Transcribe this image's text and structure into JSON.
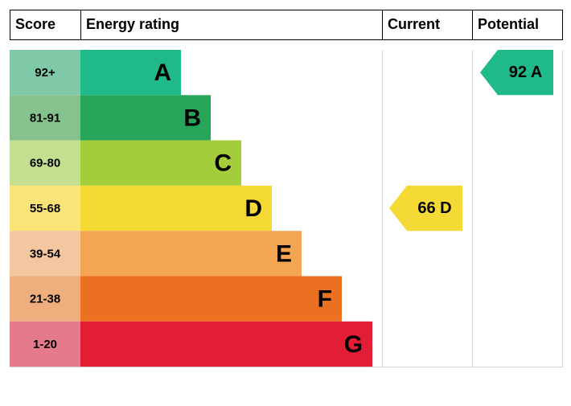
{
  "header": {
    "score": "Score",
    "energy_rating": "Energy rating",
    "current": "Current",
    "potential": "Potential"
  },
  "bands": [
    {
      "score": "92+",
      "rating": "A",
      "color": "#1fb98a",
      "score_color": "#7fc9a8"
    },
    {
      "score": "81-91",
      "rating": "B",
      "color": "#27a65b",
      "score_color": "#86c38c"
    },
    {
      "score": "69-80",
      "rating": "C",
      "color": "#a3cd3a",
      "score_color": "#c3df8f"
    },
    {
      "score": "55-68",
      "rating": "D",
      "color": "#f5d935",
      "score_color": "#fae477"
    },
    {
      "score": "39-54",
      "rating": "E",
      "color": "#f3a553",
      "score_color": "#f4c7a0"
    },
    {
      "score": "21-38",
      "rating": "F",
      "color": "#eb7022",
      "score_color": "#eeae7e"
    },
    {
      "score": "1-20",
      "rating": "G",
      "color": "#e21e36",
      "score_color": "#e57a8d"
    }
  ],
  "current": {
    "score": 66,
    "rating": "D"
  },
  "potential": {
    "score": 92,
    "rating": "A"
  }
}
